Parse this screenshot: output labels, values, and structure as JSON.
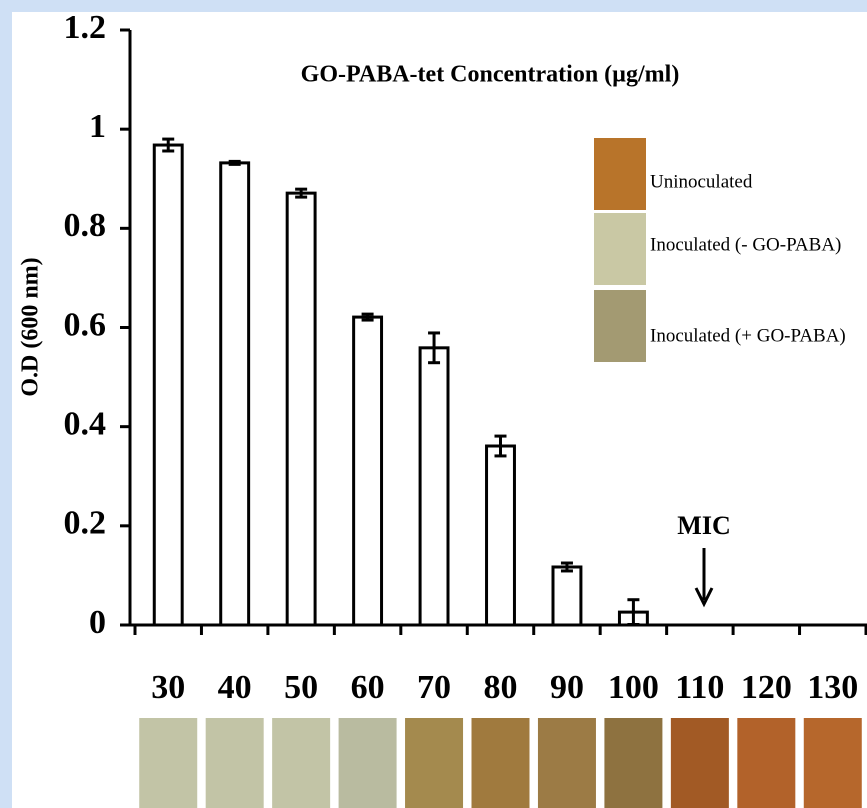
{
  "chart_data": {
    "type": "bar",
    "title": "GO-PABA-tet Concentration (µg/ml)",
    "y_label": "O.D (600 nm)",
    "categories": [
      "30",
      "40",
      "50",
      "60",
      "70",
      "80",
      "90",
      "100",
      "110",
      "120",
      "130"
    ],
    "values": [
      0.968,
      0.932,
      0.871,
      0.621,
      0.559,
      0.361,
      0.117,
      0.026,
      0,
      0,
      0
    ],
    "errors": [
      0.012,
      0.003,
      0.008,
      0.006,
      0.03,
      0.02,
      0.008,
      0.025,
      0,
      0,
      0
    ],
    "color": "#ffffff",
    "ylim": [
      0,
      1.2
    ],
    "yticks": [
      0,
      0.2,
      0.4,
      0.6,
      0.8,
      1,
      1.2
    ],
    "annotation": "MIC",
    "legend": [
      "Uninoculated",
      "Inoculated (- GO-PABA)",
      "Inoculated (+ GO-PABA)"
    ]
  }
}
